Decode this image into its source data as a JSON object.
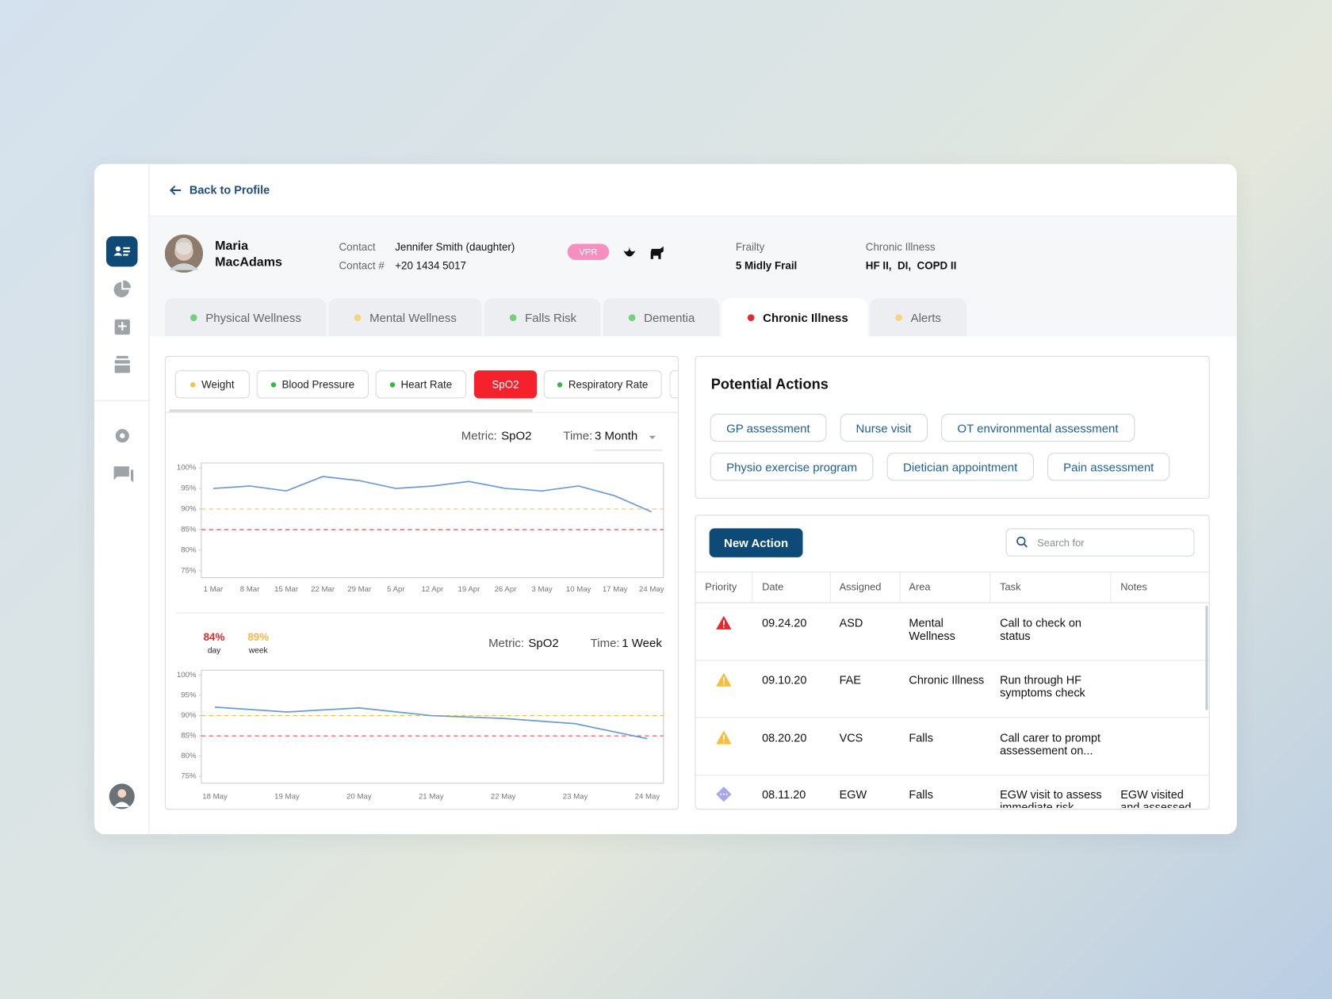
{
  "back_link": "Back to Profile",
  "patient": {
    "name": "Maria MacAdams",
    "contact_label": "Contact",
    "contact": "Jennifer Smith (daughter)",
    "phone_label": "Contact #",
    "phone": "+20 1434 5017",
    "badge": "VPR",
    "frailty_label": "Frailty",
    "frailty": "5 Midly Frail",
    "chronic_label": "Chronic Illness",
    "chronic": "HF II,  DI,  COPD II"
  },
  "tabs": [
    {
      "label": "Physical Wellness",
      "color": "#6fd17a"
    },
    {
      "label": "Mental Wellness",
      "color": "#f7d57a"
    },
    {
      "label": "Falls Risk",
      "color": "#6fd17a"
    },
    {
      "label": "Dementia",
      "color": "#6fd17a"
    },
    {
      "label": "Chronic Illness",
      "color": "#e8262b",
      "active": true
    },
    {
      "label": "Alerts",
      "color": "#f7d57a"
    }
  ],
  "metric_tabs": [
    {
      "label": "Weight",
      "color": "#f5c242"
    },
    {
      "label": "Blood Pressure",
      "color": "#2ebd3c"
    },
    {
      "label": "Heart Rate",
      "color": "#2ebd3c"
    },
    {
      "label": "SpO2",
      "active": true
    },
    {
      "label": "Respiratory Rate",
      "color": "#2ebd3c"
    }
  ],
  "charts": [
    {
      "type": "line",
      "metric_label": "Metric:",
      "metric": "SpO2",
      "time_label": "Time:",
      "time": "3 Month",
      "categories": [
        "1 Mar",
        "8 Mar",
        "15 Mar",
        "22 Mar",
        "29 Mar",
        "5 Apr",
        "12 Apr",
        "19 Apr",
        "26 Apr",
        "3 May",
        "10 May",
        "17 May",
        "24 May"
      ],
      "values": [
        95,
        95.6,
        94.4,
        97.9,
        96.9,
        95,
        95.6,
        96.7,
        95,
        94.4,
        95.6,
        93.2,
        89.3
      ],
      "color": "#6b9bd1",
      "ylim": [
        73.3,
        101.2
      ],
      "yticks": [
        {
          "value": 100,
          "label": "100%"
        },
        {
          "value": 95,
          "label": "95%"
        },
        {
          "value": 90,
          "label": "90%"
        },
        {
          "value": 85,
          "label": "85%"
        },
        {
          "value": 80,
          "label": "80%"
        },
        {
          "value": 75,
          "label": "75%"
        }
      ],
      "thresholds": [
        {
          "value": 90,
          "color": "#f5b942"
        },
        {
          "value": 85,
          "color": "#e53935"
        }
      ]
    },
    {
      "type": "line",
      "summary": [
        {
          "value": "84%",
          "label": "day",
          "color": "#e8262b"
        },
        {
          "value": "89%",
          "label": "week",
          "color": "#f5b942"
        }
      ],
      "metric_label": "Metric:",
      "metric": "SpO2",
      "time_label": "Time:",
      "time": "1 Week",
      "categories": [
        "18 May",
        "19 May",
        "20 May",
        "21 May",
        "22 May",
        "23 May",
        "24 May"
      ],
      "values": [
        92.1,
        90.9,
        91.9,
        90,
        89.3,
        88,
        84.3
      ],
      "color": "#6b9bd1",
      "ylim": [
        73.3,
        101.2
      ],
      "yticks": [
        {
          "value": 100,
          "label": "100%"
        },
        {
          "value": 95,
          "label": "95%"
        },
        {
          "value": 90,
          "label": "90%"
        },
        {
          "value": 85,
          "label": "85%"
        },
        {
          "value": 80,
          "label": "80%"
        },
        {
          "value": 75,
          "label": "75%"
        }
      ],
      "thresholds": [
        {
          "value": 90,
          "color": "#f5b942"
        },
        {
          "value": 85,
          "color": "#e53935"
        }
      ]
    }
  ],
  "actions": {
    "title": "Potential Actions",
    "chips": [
      "GP assessment",
      "Nurse visit",
      "OT environmental assessment",
      "Physio exercise program",
      "Dietician appointment",
      "Pain assessment"
    ]
  },
  "table": {
    "button": "New Action",
    "search_placeholder": "Search for",
    "columns": [
      "Priority",
      "Date",
      "Assigned",
      "Area",
      "Task",
      "Notes"
    ],
    "rows": [
      {
        "date": "09.24.20",
        "assigned": "ASD",
        "area": "Mental Wellness",
        "task": "Call to check on status"
      },
      {
        "date": "09.10.20",
        "assigned": "FAE",
        "area": "Chronic Illness",
        "task": "Run through HF symptoms check"
      },
      {
        "date": "08.20.20",
        "assigned": "VCS",
        "area": "Falls",
        "task": "Call carer to prompt assessement on..."
      },
      {
        "date": "08.11.20",
        "assigned": "EGW",
        "area": "Falls",
        "task": "EGW visit to assess immediate risk",
        "notes": "EGW visited and assessed"
      }
    ]
  }
}
